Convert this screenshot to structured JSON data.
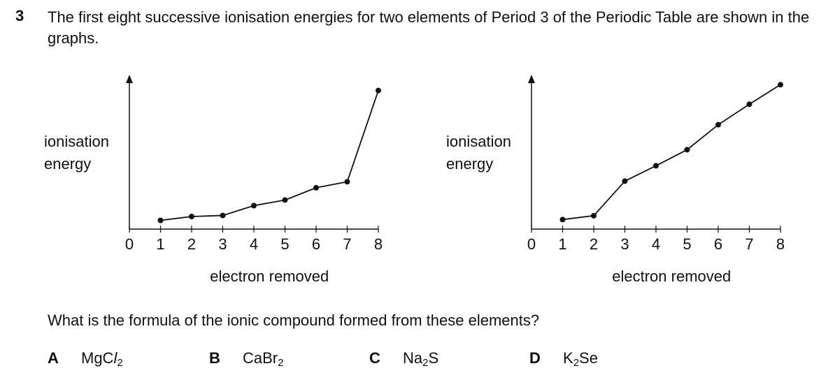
{
  "question": {
    "number": "3",
    "text": "The first eight successive ionisation energies for two elements of Period 3 of the Periodic Table are shown in the graphs.",
    "prompt": "What is the formula of the ionic compound formed from these elements?"
  },
  "chart_data": [
    {
      "type": "line",
      "ylabel_line1": "ionisation",
      "ylabel_line2": "energy",
      "xlabel": "electron removed",
      "x_ticks": [
        "0",
        "1",
        "2",
        "3",
        "4",
        "5",
        "6",
        "7",
        "8"
      ],
      "x": [
        1,
        2,
        3,
        4,
        5,
        6,
        7,
        8
      ],
      "y": [
        0.5,
        1.6,
        1.9,
        4.7,
        6.3,
        9.8,
        11.5,
        37.5
      ],
      "ylim": [
        0,
        42
      ]
    },
    {
      "type": "line",
      "ylabel_line1": "ionisation",
      "ylabel_line2": "energy",
      "xlabel": "electron removed",
      "x_ticks": [
        "0",
        "1",
        "2",
        "3",
        "4",
        "5",
        "6",
        "7",
        "8"
      ],
      "x": [
        1,
        2,
        3,
        4,
        5,
        6,
        7,
        8
      ],
      "y": [
        0.8,
        2.0,
        12.8,
        17.6,
        22.6,
        30.4,
        36.8,
        42.9
      ],
      "ylim": [
        0,
        46
      ]
    }
  ],
  "options": [
    {
      "letter": "A",
      "main": "MgC",
      "italic": "l",
      "sub": "2"
    },
    {
      "letter": "B",
      "main": "CaBr",
      "sub": "2"
    },
    {
      "letter": "C",
      "pre": "Na",
      "sub": "2",
      "post": "S"
    },
    {
      "letter": "D",
      "pre": "K",
      "sub": "2",
      "post": "Se"
    }
  ]
}
